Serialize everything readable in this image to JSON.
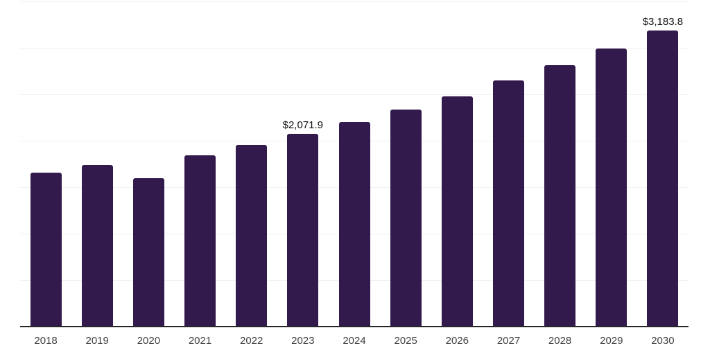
{
  "chart_data": {
    "type": "bar",
    "title": "",
    "xlabel": "",
    "ylabel": "",
    "categories": [
      "2018",
      "2019",
      "2020",
      "2021",
      "2022",
      "2023",
      "2024",
      "2025",
      "2026",
      "2027",
      "2028",
      "2029",
      "2030"
    ],
    "values": [
      1660,
      1740,
      1600,
      1845,
      1955,
      2071.9,
      2205,
      2335,
      2480,
      2650,
      2815,
      2990,
      3183.8
    ],
    "data_labels": [
      "",
      "",
      "",
      "",
      "",
      "$2,071.9",
      "",
      "",
      "",
      "",
      "",
      "",
      "$3,183.8"
    ],
    "ylim": [
      0,
      3500
    ],
    "gridline_step": 500,
    "grid": "horizontal",
    "legend": "none",
    "colors": {
      "bar": "#321A4D",
      "axis_line": "#262626",
      "gridline": "#F1F1F1",
      "tick_label": "#404040",
      "value_label": "#111111",
      "background": "#FFFFFF"
    }
  }
}
